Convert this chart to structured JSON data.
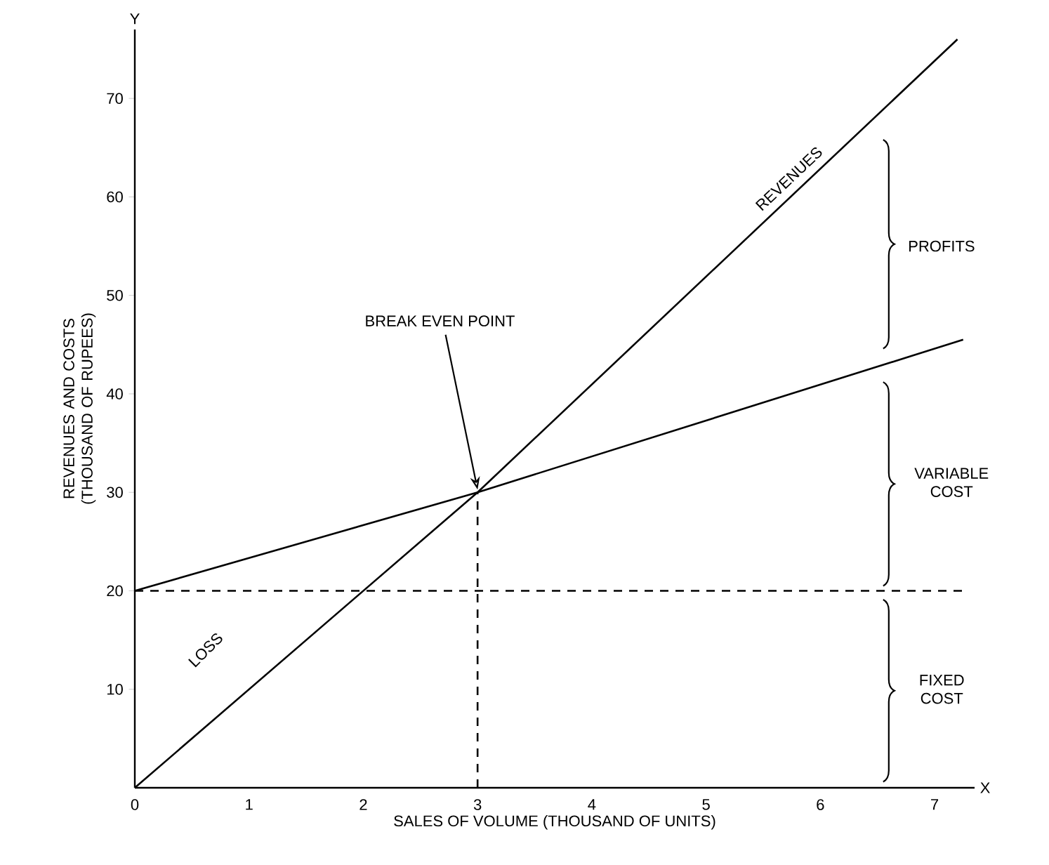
{
  "chart_data": {
    "type": "line",
    "xlabel": "SALES OF VOLUME (THOUSAND OF UNITS)",
    "ylabel": "REVENUES AND COSTS (THOUSAND OF RUPEES)",
    "xlim": [
      0,
      7.35
    ],
    "ylim": [
      0,
      77
    ],
    "xticks": [
      0,
      1,
      2,
      3,
      4,
      5,
      6,
      7
    ],
    "yticks": [
      10,
      20,
      30,
      40,
      50,
      60,
      70
    ],
    "series": [
      {
        "name": "REVENUES",
        "color": "#000000",
        "x": [
          0,
          3,
          7.2
        ],
        "values": [
          0,
          30,
          76
        ]
      },
      {
        "color": "#000000",
        "x": [
          0,
          3,
          7.25
        ],
        "values": [
          20,
          30,
          45.5
        ]
      },
      {
        "color": "#000000",
        "line_style": "dashed",
        "x": [
          0,
          7.25
        ],
        "values": [
          20,
          20
        ]
      },
      {
        "color": "#000000",
        "line_style": "dashed",
        "x": [
          3,
          3
        ],
        "values": [
          0,
          30
        ]
      }
    ],
    "annotations": [
      {
        "text": "BREAK EVEN POINT",
        "x": 3,
        "y": 30
      },
      "PROFITS",
      "VARIABLE COST",
      "FIXED COST",
      "LOSS",
      "X",
      "Y"
    ]
  }
}
